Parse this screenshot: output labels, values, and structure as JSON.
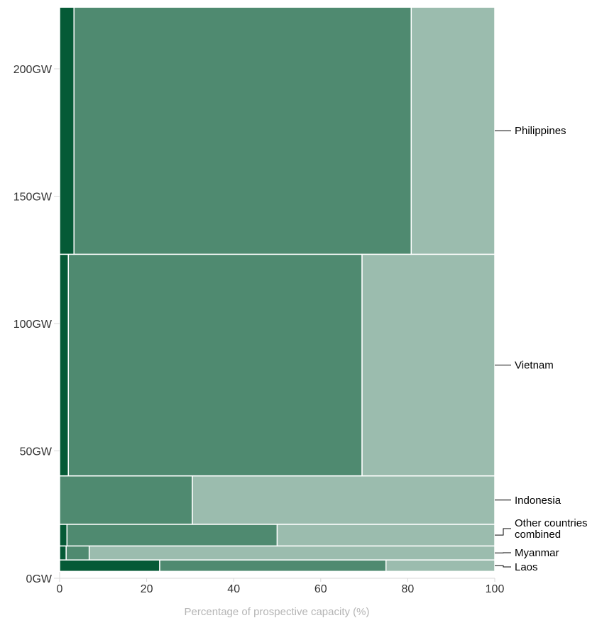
{
  "chart_data": {
    "type": "mosaic",
    "x_axis": {
      "label": "Percentage of prospective capacity (%)",
      "range": [
        0,
        100
      ],
      "ticks": [
        "0",
        "20",
        "40",
        "60",
        "80",
        "100"
      ]
    },
    "y_axis": {
      "label": "",
      "range": [
        0,
        225
      ],
      "ticks": [
        "0GW",
        "50GW",
        "100GW",
        "150GW",
        "200GW"
      ]
    },
    "segment_colors": [
      "#055a36",
      "#4f8a70",
      "#9bbcae"
    ],
    "countries": [
      {
        "name": "Laos",
        "capacity_gw": 4.5,
        "shares": [
          23,
          52,
          25
        ]
      },
      {
        "name": "Myanmar",
        "capacity_gw": 5.5,
        "shares": [
          1.5,
          5.3,
          93.2
        ]
      },
      {
        "name": "Other countries combined",
        "capacity_gw": 8.5,
        "shares": [
          1.7,
          48.3,
          50
        ]
      },
      {
        "name": "Indonesia",
        "capacity_gw": 19,
        "shares": [
          0,
          30.5,
          69.5
        ]
      },
      {
        "name": "Vietnam",
        "capacity_gw": 87,
        "shares": [
          2,
          67.5,
          30.5
        ]
      },
      {
        "name": "Philippines",
        "capacity_gw": 97,
        "shares": [
          3.3,
          77.5,
          19.2
        ]
      }
    ]
  }
}
